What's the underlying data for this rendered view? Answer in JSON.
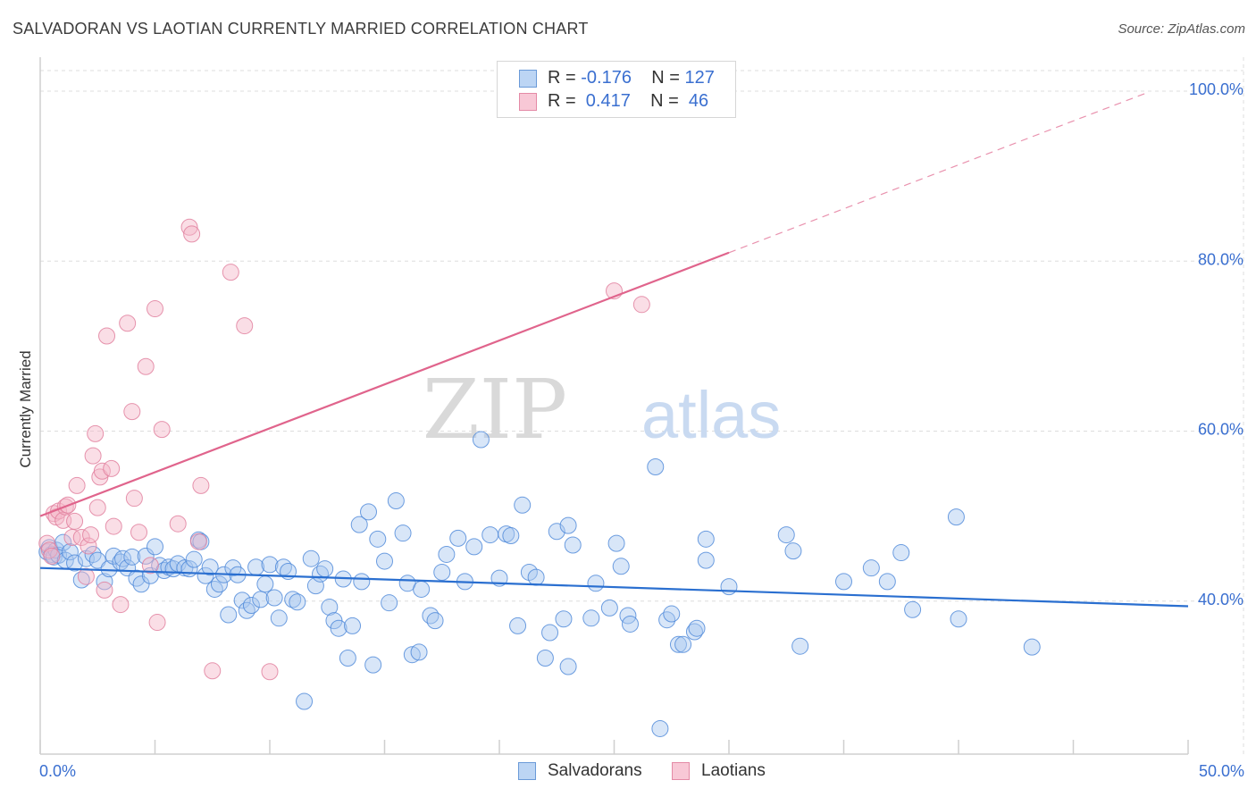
{
  "title": "SALVADORAN VS LAOTIAN CURRENTLY MARRIED CORRELATION CHART",
  "source": "Source: ZipAtlas.com",
  "watermark": {
    "zip": "ZIP",
    "atlas": "atlas"
  },
  "legend": {
    "rows": [
      {
        "r_label": "R = ",
        "r_value": "-0.176",
        "n_label": "N = ",
        "n_value": "127"
      },
      {
        "r_label": "R = ",
        "r_value": " 0.417",
        "n_label": "N = ",
        "n_value": " 46"
      }
    ]
  },
  "colors": {
    "blue_fill": "#a9c8f0",
    "blue_stroke": "#4a86d8",
    "blue_line": "#2a6fd0",
    "pink_fill": "#f5b5c8",
    "pink_stroke": "#e07a9a",
    "pink_line": "#e0648c",
    "tick_label": "#3a6fd0",
    "grid": "#dddddd"
  },
  "chart_data": {
    "type": "scatter",
    "title": "SALVADORAN VS LAOTIAN CURRENTLY MARRIED CORRELATION CHART",
    "xlabel": "",
    "ylabel": "Currently Married",
    "xlim": [
      0,
      50
    ],
    "ylim": [
      22,
      104
    ],
    "x_tick_labels": [
      "0.0%",
      "50.0%"
    ],
    "y_ticks": [
      40,
      60,
      80,
      100
    ],
    "y_tick_labels": [
      "40.0%",
      "60.0%",
      "80.0%",
      "100.0%"
    ],
    "grid": true,
    "legend_position": "bottom-center",
    "series": [
      {
        "name": "Salvadorans",
        "r": -0.176,
        "n": 127,
        "trend": {
          "x": [
            0,
            50
          ],
          "y": [
            43.9,
            39.4
          ]
        },
        "points": [
          [
            0.3,
            45.8
          ],
          [
            0.4,
            46.3
          ],
          [
            0.5,
            45.5
          ],
          [
            0.6,
            45.2
          ],
          [
            0.7,
            46.0
          ],
          [
            0.8,
            45.4
          ],
          [
            1.0,
            46.9
          ],
          [
            1.1,
            44.8
          ],
          [
            1.3,
            45.8
          ],
          [
            1.5,
            44.5
          ],
          [
            1.8,
            42.5
          ],
          [
            2.0,
            45.0
          ],
          [
            2.3,
            45.5
          ],
          [
            2.5,
            44.8
          ],
          [
            2.8,
            42.3
          ],
          [
            3.0,
            43.8
          ],
          [
            3.2,
            45.3
          ],
          [
            3.5,
            44.6
          ],
          [
            3.6,
            45.0
          ],
          [
            3.8,
            43.9
          ],
          [
            4.0,
            45.2
          ],
          [
            4.2,
            42.7
          ],
          [
            4.4,
            42.0
          ],
          [
            4.6,
            45.3
          ],
          [
            4.8,
            43.0
          ],
          [
            5.0,
            46.4
          ],
          [
            5.2,
            44.2
          ],
          [
            5.4,
            43.6
          ],
          [
            5.6,
            44.0
          ],
          [
            5.8,
            43.8
          ],
          [
            6.0,
            44.4
          ],
          [
            6.3,
            43.9
          ],
          [
            6.5,
            43.8
          ],
          [
            6.7,
            44.9
          ],
          [
            6.9,
            47.2
          ],
          [
            7.0,
            47.0
          ],
          [
            7.2,
            43.0
          ],
          [
            7.4,
            44.0
          ],
          [
            7.6,
            41.4
          ],
          [
            7.8,
            42.0
          ],
          [
            8.0,
            43.1
          ],
          [
            8.2,
            38.4
          ],
          [
            8.4,
            43.9
          ],
          [
            8.6,
            43.1
          ],
          [
            8.8,
            40.1
          ],
          [
            9.0,
            38.9
          ],
          [
            9.2,
            39.5
          ],
          [
            9.4,
            44.0
          ],
          [
            9.6,
            40.2
          ],
          [
            9.8,
            42.0
          ],
          [
            10.0,
            44.3
          ],
          [
            10.2,
            40.4
          ],
          [
            10.4,
            38.0
          ],
          [
            10.6,
            44.0
          ],
          [
            10.8,
            43.5
          ],
          [
            11.0,
            40.2
          ],
          [
            11.2,
            39.9
          ],
          [
            11.5,
            28.2
          ],
          [
            11.8,
            45.0
          ],
          [
            12.0,
            41.8
          ],
          [
            12.2,
            43.2
          ],
          [
            12.4,
            43.8
          ],
          [
            12.6,
            39.3
          ],
          [
            12.8,
            37.7
          ],
          [
            13.0,
            36.8
          ],
          [
            13.2,
            42.6
          ],
          [
            13.4,
            33.3
          ],
          [
            13.6,
            37.1
          ],
          [
            13.9,
            49.0
          ],
          [
            14.0,
            42.3
          ],
          [
            14.3,
            50.5
          ],
          [
            14.5,
            32.5
          ],
          [
            14.7,
            47.3
          ],
          [
            15.0,
            44.7
          ],
          [
            15.2,
            39.8
          ],
          [
            15.5,
            51.8
          ],
          [
            15.8,
            48.0
          ],
          [
            16.0,
            42.1
          ],
          [
            16.2,
            33.7
          ],
          [
            16.5,
            34.0
          ],
          [
            16.6,
            41.4
          ],
          [
            17.0,
            38.3
          ],
          [
            17.2,
            37.7
          ],
          [
            17.5,
            43.4
          ],
          [
            17.7,
            45.5
          ],
          [
            18.2,
            47.4
          ],
          [
            18.5,
            42.3
          ],
          [
            18.9,
            46.4
          ],
          [
            19.2,
            59.0
          ],
          [
            19.6,
            47.8
          ],
          [
            20.0,
            42.7
          ],
          [
            20.3,
            47.9
          ],
          [
            20.5,
            47.7
          ],
          [
            20.8,
            37.1
          ],
          [
            21.0,
            51.3
          ],
          [
            21.3,
            43.4
          ],
          [
            21.6,
            42.8
          ],
          [
            22.0,
            33.3
          ],
          [
            22.2,
            36.3
          ],
          [
            22.5,
            48.2
          ],
          [
            22.8,
            37.9
          ],
          [
            23.0,
            32.3
          ],
          [
            23.0,
            48.9
          ],
          [
            23.2,
            46.6
          ],
          [
            24.0,
            38.0
          ],
          [
            24.2,
            42.1
          ],
          [
            24.8,
            39.2
          ],
          [
            25.1,
            46.8
          ],
          [
            25.3,
            44.1
          ],
          [
            25.6,
            38.3
          ],
          [
            25.7,
            37.3
          ],
          [
            26.8,
            55.8
          ],
          [
            27.0,
            25.0
          ],
          [
            27.3,
            37.8
          ],
          [
            27.5,
            38.5
          ],
          [
            27.8,
            34.9
          ],
          [
            28.0,
            34.9
          ],
          [
            28.5,
            36.4
          ],
          [
            28.6,
            36.8
          ],
          [
            29.0,
            47.3
          ],
          [
            29.0,
            44.8
          ],
          [
            30.0,
            41.7
          ],
          [
            32.5,
            47.8
          ],
          [
            32.8,
            45.9
          ],
          [
            33.1,
            34.7
          ],
          [
            35.0,
            42.3
          ],
          [
            36.2,
            43.9
          ],
          [
            36.9,
            42.3
          ],
          [
            38.0,
            39.0
          ],
          [
            37.5,
            45.7
          ],
          [
            39.9,
            49.9
          ],
          [
            40.0,
            37.9
          ],
          [
            43.2,
            34.6
          ]
        ]
      },
      {
        "name": "Laotians",
        "r": 0.417,
        "n": 46,
        "trend": {
          "x": [
            0,
            30
          ],
          "y": [
            50.0,
            81.0
          ]
        },
        "points": [
          [
            0.3,
            46.8
          ],
          [
            0.4,
            46.0
          ],
          [
            0.5,
            45.3
          ],
          [
            0.6,
            50.3
          ],
          [
            0.7,
            49.9
          ],
          [
            0.8,
            50.6
          ],
          [
            1.0,
            49.5
          ],
          [
            1.1,
            51.1
          ],
          [
            1.2,
            51.3
          ],
          [
            1.4,
            47.5
          ],
          [
            1.5,
            49.4
          ],
          [
            1.6,
            53.6
          ],
          [
            1.8,
            47.5
          ],
          [
            2.0,
            42.9
          ],
          [
            2.1,
            46.5
          ],
          [
            2.2,
            47.8
          ],
          [
            2.3,
            57.1
          ],
          [
            2.4,
            59.7
          ],
          [
            2.5,
            51.0
          ],
          [
            2.6,
            54.6
          ],
          [
            2.7,
            55.3
          ],
          [
            2.8,
            41.3
          ],
          [
            2.9,
            71.2
          ],
          [
            3.1,
            55.6
          ],
          [
            3.2,
            48.8
          ],
          [
            3.5,
            39.6
          ],
          [
            3.8,
            72.7
          ],
          [
            4.0,
            62.3
          ],
          [
            4.1,
            52.1
          ],
          [
            4.3,
            48.1
          ],
          [
            4.6,
            67.6
          ],
          [
            4.8,
            44.2
          ],
          [
            5.0,
            74.4
          ],
          [
            5.1,
            37.5
          ],
          [
            5.3,
            60.2
          ],
          [
            6.0,
            49.1
          ],
          [
            6.5,
            84.0
          ],
          [
            6.6,
            83.2
          ],
          [
            6.9,
            47.0
          ],
          [
            7.0,
            53.6
          ],
          [
            7.5,
            31.8
          ],
          [
            8.3,
            78.7
          ],
          [
            8.9,
            72.4
          ],
          [
            10.0,
            31.7
          ],
          [
            25.0,
            76.5
          ],
          [
            26.2,
            74.9
          ]
        ]
      }
    ]
  }
}
